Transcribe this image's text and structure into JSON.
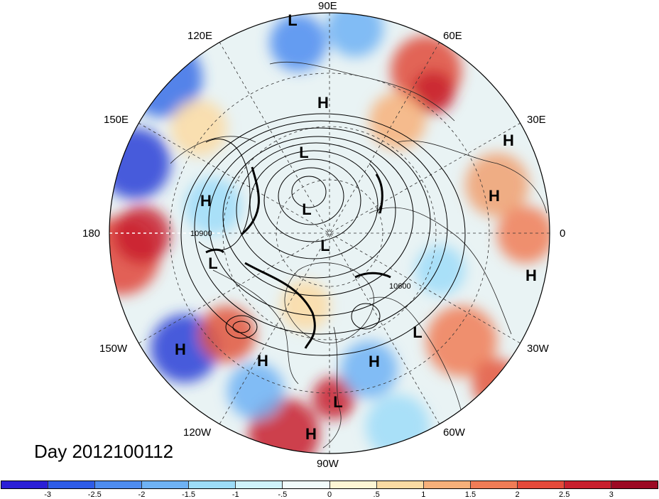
{
  "title": "Day 2012100112",
  "longitude_labels": [
    {
      "text": "90E"
    },
    {
      "text": "120E"
    },
    {
      "text": "60E"
    },
    {
      "text": "150E"
    },
    {
      "text": "30E"
    },
    {
      "text": "180"
    },
    {
      "text": "0"
    },
    {
      "text": "150W"
    },
    {
      "text": "30W"
    },
    {
      "text": "120W"
    },
    {
      "text": "60W"
    },
    {
      "text": "90W"
    }
  ],
  "contour_labels": [
    "10900",
    "10600"
  ],
  "pressure_systems": [
    {
      "type": "L"
    },
    {
      "type": "H"
    },
    {
      "type": "L"
    },
    {
      "type": "L"
    },
    {
      "type": "H"
    },
    {
      "type": "H"
    },
    {
      "type": "H"
    },
    {
      "type": "L"
    },
    {
      "type": "L"
    },
    {
      "type": "H"
    },
    {
      "type": "H"
    },
    {
      "type": "H"
    },
    {
      "type": "L"
    },
    {
      "type": "H"
    },
    {
      "type": "L"
    },
    {
      "type": "H"
    }
  ],
  "colorbar": {
    "colors": [
      "#2b1fd6",
      "#2f5ce8",
      "#4e8cf0",
      "#6fb2f4",
      "#9ddcf8",
      "#cff2fb",
      "#f1fbfb",
      "#fdf5d4",
      "#fbdba3",
      "#f7b07a",
      "#f07c56",
      "#e44a3a",
      "#c8202e",
      "#9c0a24"
    ],
    "ticks": [
      "-3",
      "-2.5",
      "-2",
      "-1.5",
      "-1",
      "-.5",
      "0",
      ".5",
      "1",
      "1.5",
      "2",
      "2.5",
      "3"
    ]
  }
}
